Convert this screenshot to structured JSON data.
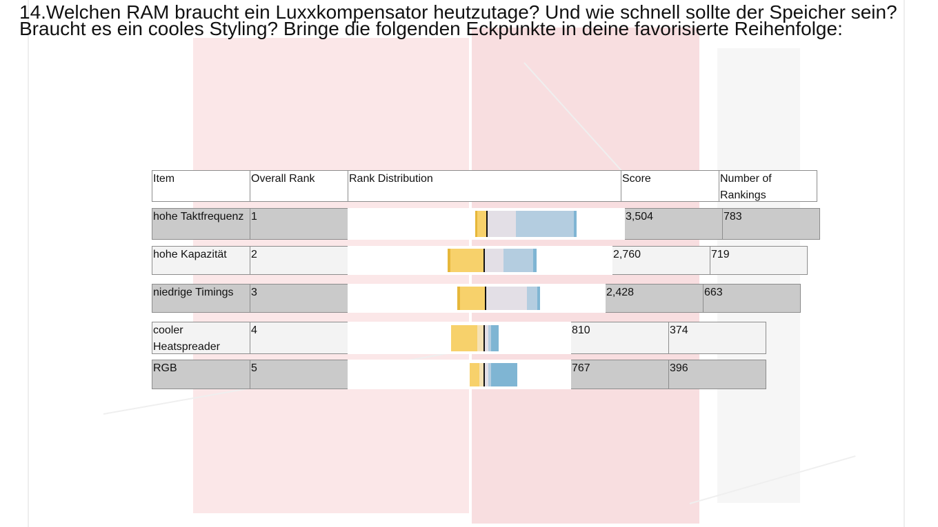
{
  "title": "14.Welchen RAM braucht ein Luxxkompensator heutzutage? Und wie schnell sollte der Speicher sein?\nBraucht es ein cooles Styling? Bringe die folgenden Eckpunkte in deine favorisierte Reihenfolge:",
  "headers": {
    "item": "Item",
    "overall_rank": "Overall Rank",
    "rank_distribution": "Rank Distribution",
    "score": "Score",
    "number_of_rankings": "Number of Rankings"
  },
  "rows": [
    {
      "item": "hohe Taktfrequenz",
      "rank": "1",
      "score": "3,504",
      "rankings": "783"
    },
    {
      "item": "hohe Kapazität",
      "rank": "2",
      "score": "2,760",
      "rankings": "719"
    },
    {
      "item": "niedrige Timings",
      "rank": "3",
      "score": "2,428",
      "rankings": "663"
    },
    {
      "item": "cooler Heatspreader",
      "rank": "4",
      "score": "810",
      "rankings": "374"
    },
    {
      "item": "RGB",
      "rank": "5",
      "score": "767",
      "rankings": "396"
    }
  ],
  "colors": {
    "rank_low_dark": "#e6b73a",
    "rank_low": "#f7d16b",
    "rank_mid": "#f5e2b5",
    "neutral": "#e3dfe6",
    "rank_high": "#b4cde0",
    "rank_top": "#7fb5d3",
    "row_dark": "#cacaca",
    "row_light": "#f3f3f3"
  }
}
